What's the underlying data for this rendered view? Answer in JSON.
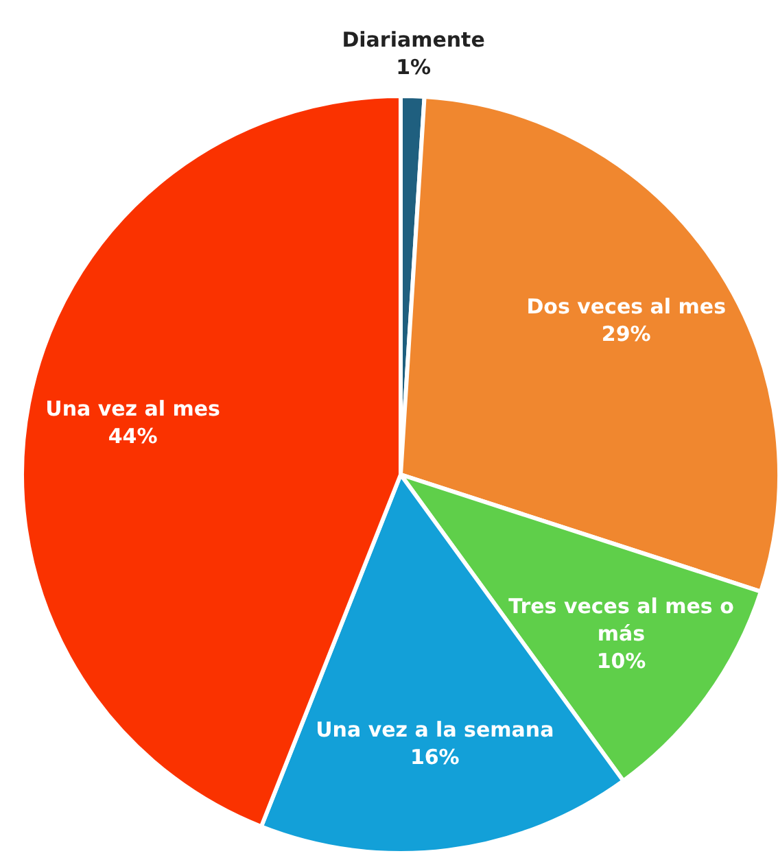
{
  "chart_data": {
    "type": "pie",
    "categories": [
      "Diariamente",
      "Dos veces al mes",
      "Tres veces al mes o más",
      "Una vez a la semana",
      "Una vez al mes"
    ],
    "values": [
      1,
      29,
      10,
      16,
      44
    ],
    "value_labels": [
      "1%",
      "29%",
      "10%",
      "16%",
      "44%"
    ],
    "colors": [
      "#1f5f7f",
      "#f0872f",
      "#5fcf4a",
      "#13a0d8",
      "#fa3200"
    ]
  }
}
